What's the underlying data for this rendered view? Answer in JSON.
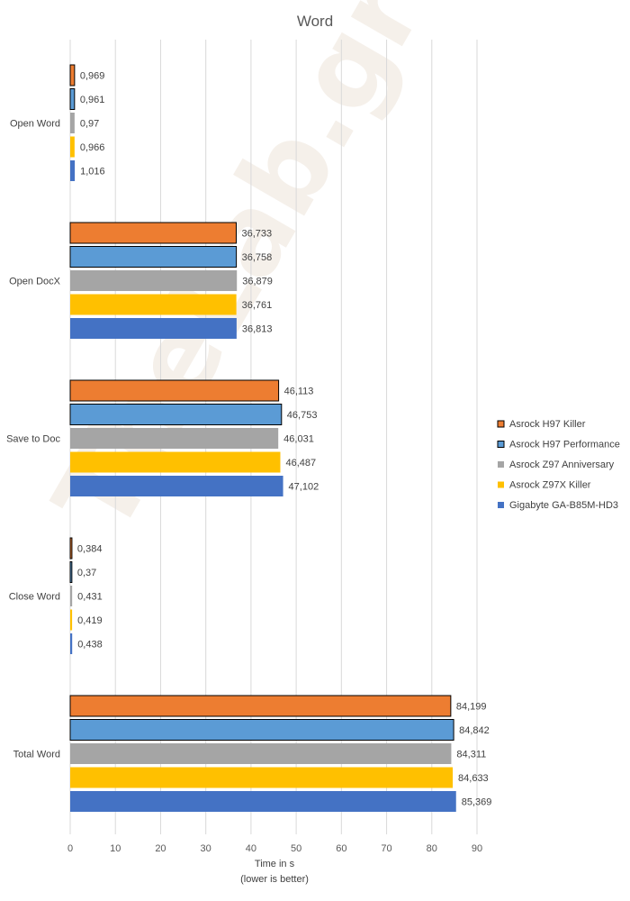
{
  "chart_data": {
    "type": "bar",
    "orientation": "horizontal",
    "title": "Word",
    "xlabel": "Time in s",
    "xlabel_note": "(lower is better)",
    "xlim": [
      0,
      90
    ],
    "xticks": [
      0,
      10,
      20,
      30,
      40,
      50,
      60,
      70,
      80,
      90
    ],
    "grid": true,
    "legend_position": "right",
    "watermark": "TheLab.gr",
    "categories": [
      "Open Word",
      "Open DocX",
      "Save to Doc",
      "Close Word",
      "Total Word"
    ],
    "series": [
      {
        "name": "Asrock H97 Killer",
        "color": "#ed7d31",
        "outlined": true,
        "values": [
          0.969,
          36.733,
          46.113,
          0.384,
          84.199
        ],
        "labels": [
          "0,969",
          "36,733",
          "46,113",
          "0,384",
          "84,199"
        ]
      },
      {
        "name": "Asrock H97 Performance",
        "color": "#5b9bd5",
        "outlined": true,
        "values": [
          0.961,
          36.758,
          46.753,
          0.37,
          84.842
        ],
        "labels": [
          "0,961",
          "36,758",
          "46,753",
          "0,37",
          "84,842"
        ]
      },
      {
        "name": "Asrock Z97 Anniversary",
        "color": "#a5a5a5",
        "outlined": false,
        "values": [
          0.97,
          36.879,
          46.031,
          0.431,
          84.311
        ],
        "labels": [
          "0,97",
          "36,879",
          "46,031",
          "0,431",
          "84,311"
        ]
      },
      {
        "name": "Asrock Z97X Killer",
        "color": "#ffc000",
        "outlined": false,
        "values": [
          0.966,
          36.761,
          46.487,
          0.419,
          84.633
        ],
        "labels": [
          "0,966",
          "36,761",
          "46,487",
          "0,419",
          "84,633"
        ]
      },
      {
        "name": "Gigabyte GA-B85M-HD3",
        "color": "#4472c4",
        "outlined": false,
        "values": [
          1.016,
          36.813,
          47.102,
          0.438,
          85.369
        ],
        "labels": [
          "1,016",
          "36,813",
          "47,102",
          "0,438",
          "85,369"
        ]
      }
    ]
  }
}
